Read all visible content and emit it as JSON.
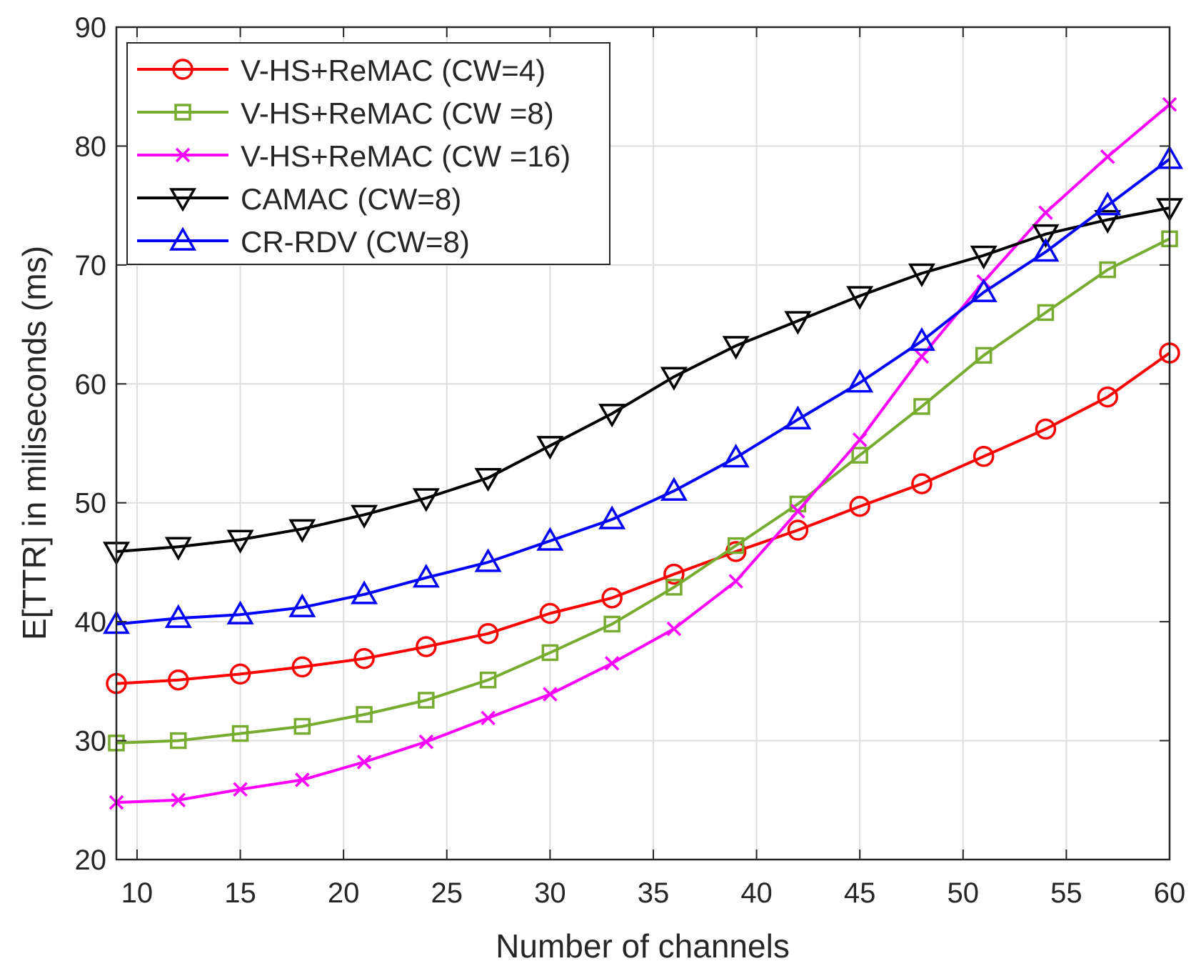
{
  "chart_data": {
    "type": "line",
    "title": "",
    "xlabel": "Number of channels",
    "ylabel": "E[TTR] in miliseconds (ms)",
    "xlim": [
      9,
      60
    ],
    "ylim": [
      20,
      90
    ],
    "xticks": [
      10,
      15,
      20,
      25,
      30,
      35,
      40,
      45,
      50,
      55,
      60
    ],
    "yticks": [
      20,
      30,
      40,
      50,
      60,
      70,
      80,
      90
    ],
    "grid": true,
    "legend_position": "top-left",
    "x": [
      9,
      12,
      15,
      18,
      21,
      24,
      27,
      30,
      33,
      36,
      39,
      42,
      45,
      48,
      51,
      54,
      57,
      60
    ],
    "series": [
      {
        "name": "V-HS+ReMAC (CW=4)",
        "color": "#ff0000",
        "marker": "circle",
        "values": [
          34.8,
          35.1,
          35.6,
          36.2,
          36.9,
          37.9,
          39.0,
          40.7,
          42.0,
          44.0,
          45.9,
          47.7,
          49.7,
          51.6,
          53.9,
          56.2,
          58.9,
          62.6
        ]
      },
      {
        "name": "V-HS+ReMAC (CW =8)",
        "color": "#77ac30",
        "marker": "square",
        "values": [
          29.8,
          30.0,
          30.6,
          31.2,
          32.2,
          33.4,
          35.1,
          37.4,
          39.8,
          42.9,
          46.4,
          49.9,
          54.0,
          58.1,
          62.4,
          66.0,
          69.6,
          72.2
        ]
      },
      {
        "name": "V-HS+ReMAC (CW =16)",
        "color": "#ff00ff",
        "marker": "x",
        "values": [
          24.8,
          25.0,
          25.9,
          26.7,
          28.2,
          29.9,
          31.9,
          33.9,
          36.5,
          39.4,
          43.4,
          49.3,
          55.3,
          62.3,
          68.6,
          74.4,
          79.1,
          83.5
        ]
      },
      {
        "name": "CAMAC (CW=8)",
        "color": "#000000",
        "marker": "triangle-down",
        "values": [
          45.9,
          46.3,
          46.9,
          47.8,
          49.0,
          50.4,
          52.1,
          54.8,
          57.5,
          60.6,
          63.2,
          65.3,
          67.4,
          69.3,
          70.8,
          72.6,
          73.8,
          74.8
        ]
      },
      {
        "name": "CR-RDV (CW=8)",
        "color": "#0000ff",
        "marker": "triangle-up",
        "values": [
          39.8,
          40.3,
          40.6,
          41.2,
          42.3,
          43.7,
          45.0,
          46.8,
          48.6,
          51.0,
          53.8,
          57.0,
          60.1,
          63.6,
          67.7,
          71.1,
          75.0,
          78.9
        ]
      }
    ]
  }
}
